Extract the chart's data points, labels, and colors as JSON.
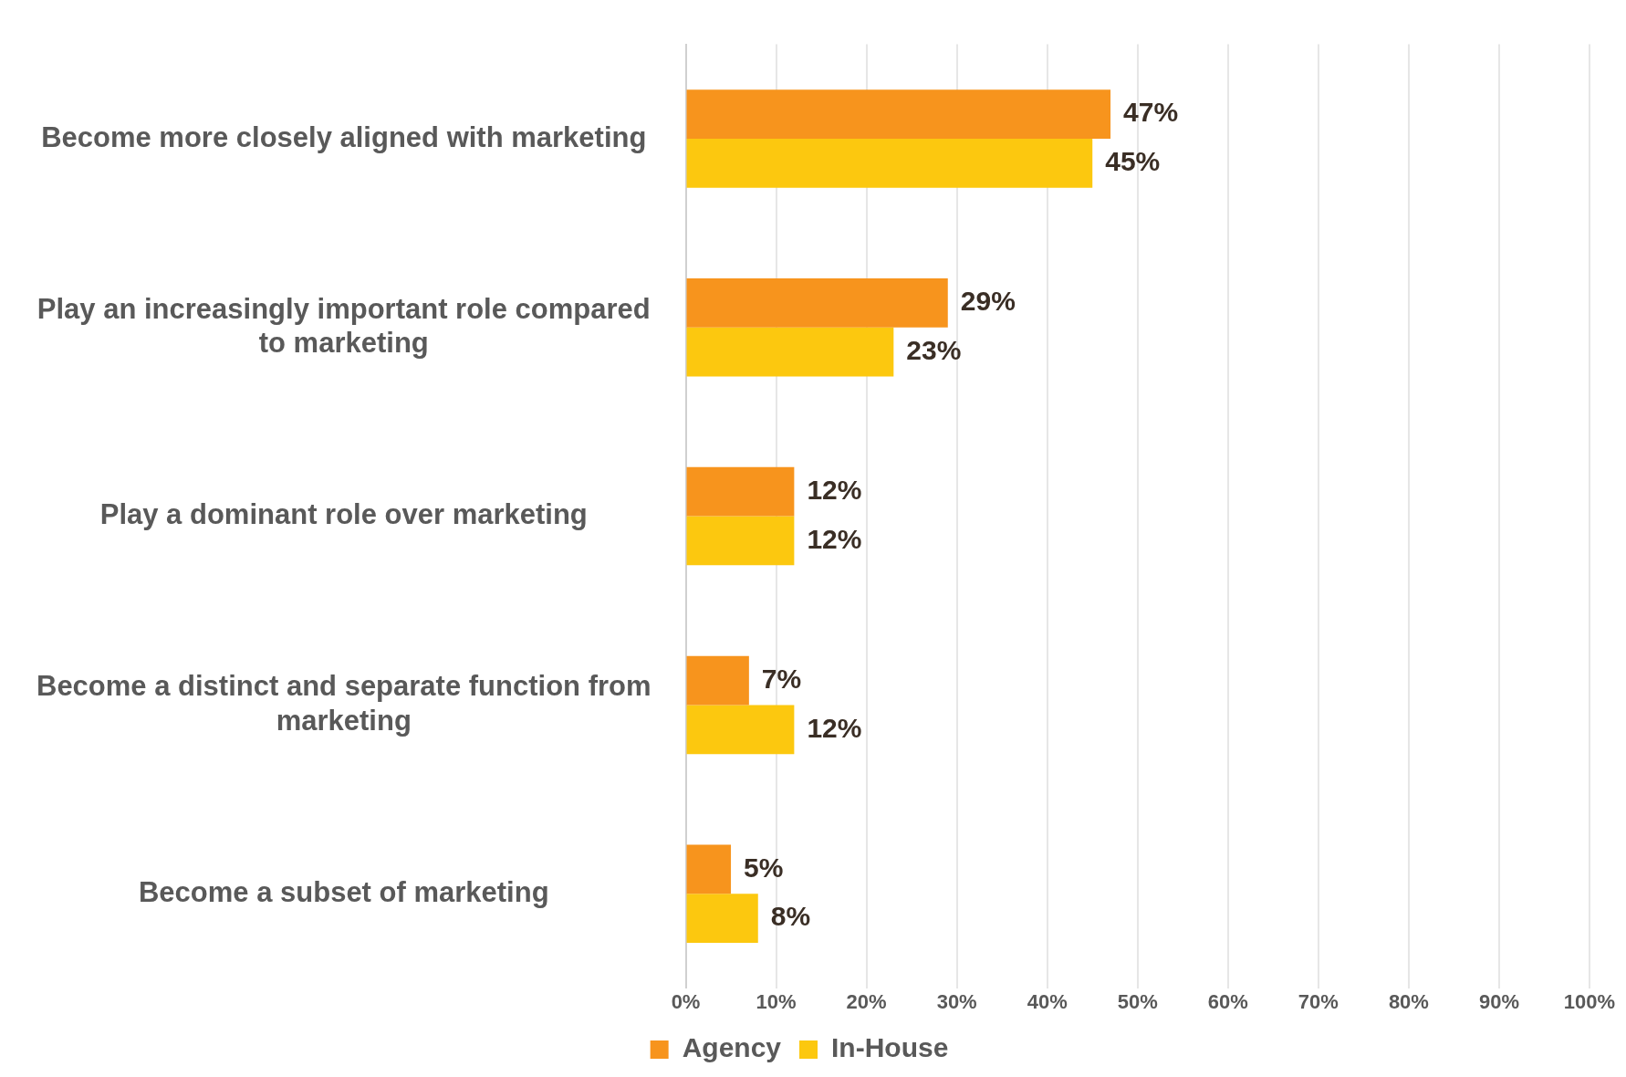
{
  "chart_data": {
    "type": "bar",
    "orientation": "horizontal",
    "categories": [
      "Become more closely aligned with marketing",
      "Play an increasingly important role compared to marketing",
      "Play a dominant role over marketing",
      "Become a distinct and separate function from marketing",
      "Become a subset of marketing"
    ],
    "series": [
      {
        "name": "Agency",
        "color": "#f7941d",
        "values": [
          47,
          29,
          12,
          7,
          5
        ],
        "value_labels": [
          "47%",
          "29%",
          "12%",
          "7%",
          "5%"
        ]
      },
      {
        "name": "In-House",
        "color": "#fcc80f",
        "values": [
          45,
          23,
          12,
          12,
          8
        ],
        "value_labels": [
          "45%",
          "23%",
          "12%",
          "12%",
          "8%"
        ]
      }
    ],
    "xlim": [
      0,
      100
    ],
    "xticks": [
      {
        "value": 0,
        "label": "0%"
      },
      {
        "value": 10,
        "label": "10%"
      },
      {
        "value": 20,
        "label": "20%"
      },
      {
        "value": 30,
        "label": "30%"
      },
      {
        "value": 40,
        "label": "40%"
      },
      {
        "value": 50,
        "label": "50%"
      },
      {
        "value": 60,
        "label": "60%"
      },
      {
        "value": 70,
        "label": "70%"
      },
      {
        "value": 80,
        "label": "80%"
      },
      {
        "value": 90,
        "label": "90%"
      },
      {
        "value": 100,
        "label": "100%"
      }
    ],
    "grid": "x",
    "legend": "bottom"
  }
}
